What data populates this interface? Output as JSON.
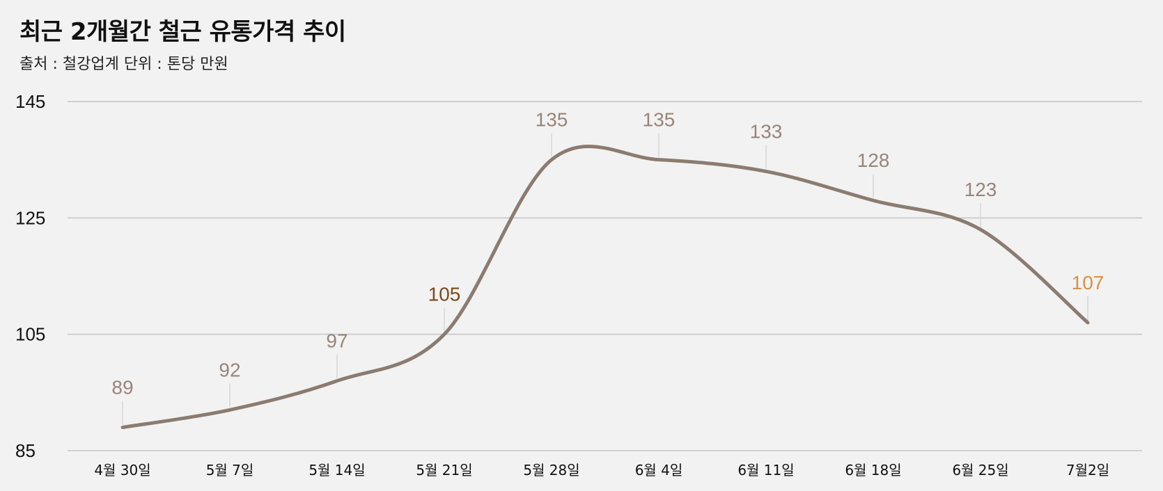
{
  "header": {
    "title": "최근 2개월간 철근 유통가격 추이",
    "subtitle": "출처 : 철강업계  단위 : 톤당 만원"
  },
  "colors": {
    "background": "#f2f2f2",
    "line": "#8c7b70",
    "label_default": "#9a8478",
    "label_highlight_dark": "#7a4a1e",
    "label_highlight_orange": "#d4924a",
    "gridline": "#c4c4c4"
  },
  "chart_data": {
    "type": "line",
    "title": "최근 2개월간 철근 유통가격 추이",
    "xlabel": "",
    "ylabel": "",
    "categories": [
      "4월 30일",
      "5월 7일",
      "5월 14일",
      "5월 21일",
      "5월 28일",
      "6월 4일",
      "6월 11일",
      "6월 18일",
      "6월 25일",
      "7월2일"
    ],
    "series": [
      {
        "values": [
          89,
          92,
          97,
          105,
          135,
          135,
          133,
          128,
          123,
          107
        ]
      }
    ],
    "data_labels": [
      "89",
      "92",
      "97",
      "105",
      "135",
      "135",
      "133",
      "128",
      "123",
      "107"
    ],
    "label_colors": [
      "#9a8478",
      "#9a8478",
      "#9a8478",
      "#7a4a1e",
      "#9a8478",
      "#9a8478",
      "#9a8478",
      "#9a8478",
      "#9a8478",
      "#d4924a"
    ],
    "yticks": [
      "85",
      "105",
      "125",
      "145"
    ],
    "ylim": [
      85,
      145
    ],
    "grid": true,
    "legend": "none"
  }
}
